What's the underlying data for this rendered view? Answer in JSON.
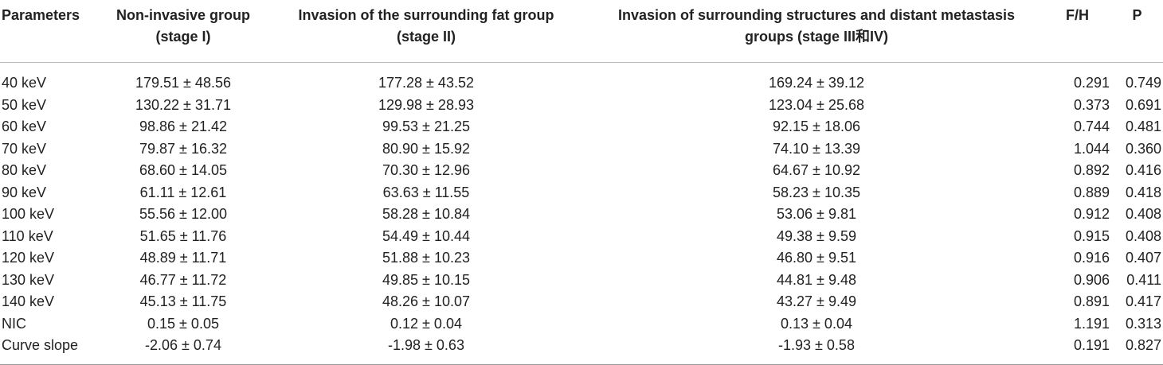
{
  "table": {
    "header": [
      [
        "Parameters"
      ],
      [
        "Non-invasive group",
        "(stage I)"
      ],
      [
        "Invasion of the surrounding fat group",
        "(stage II)"
      ],
      [
        "Invasion of surrounding structures and distant metastasis",
        "groups (stage III和IV)"
      ],
      [
        "F/H"
      ],
      [
        "P"
      ]
    ],
    "rows": [
      [
        "40 keV",
        "179.51 ± 48.56",
        "177.28 ± 43.52",
        "169.24 ± 39.12",
        "0.291",
        "0.749"
      ],
      [
        "50 keV",
        "130.22 ± 31.71",
        "129.98 ± 28.93",
        "123.04 ± 25.68",
        "0.373",
        "0.691"
      ],
      [
        "60 keV",
        "98.86 ± 21.42",
        "99.53 ± 21.25",
        "92.15 ± 18.06",
        "0.744",
        "0.481"
      ],
      [
        "70 keV",
        "79.87 ± 16.32",
        "80.90 ± 15.92",
        "74.10 ± 13.39",
        "1.044",
        "0.360"
      ],
      [
        "80 keV",
        "68.60 ± 14.05",
        "70.30 ± 12.96",
        "64.67 ± 10.92",
        "0.892",
        "0.416"
      ],
      [
        "90 keV",
        "61.11 ± 12.61",
        "63.63 ± 11.55",
        "58.23 ± 10.35",
        "0.889",
        "0.418"
      ],
      [
        "100 keV",
        "55.56 ± 12.00",
        "58.28 ± 10.84",
        "53.06 ± 9.81",
        "0.912",
        "0.408"
      ],
      [
        "110 keV",
        "51.65 ± 11.76",
        "54.49 ± 10.44",
        "49.38 ± 9.59",
        "0.915",
        "0.408"
      ],
      [
        "120 keV",
        "48.89 ± 11.71",
        "51.88 ± 10.23",
        "46.80 ± 9.51",
        "0.916",
        "0.407"
      ],
      [
        "130 keV",
        "46.77 ± 11.72",
        "49.85 ± 10.15",
        "44.81 ± 9.48",
        "0.906",
        "0.411"
      ],
      [
        "140 keV",
        "45.13 ± 11.75",
        "48.26 ± 10.07",
        "43.27 ± 9.49",
        "0.891",
        "0.417"
      ],
      [
        "NIC",
        "0.15 ± 0.05",
        "0.12 ± 0.04",
        "0.13 ± 0.04",
        "1.191",
        "0.313"
      ],
      [
        "Curve slope",
        "-2.06 ± 0.74",
        "-1.98 ± 0.63",
        "-1.93 ± 0.58",
        "0.191",
        "0.827"
      ]
    ]
  }
}
